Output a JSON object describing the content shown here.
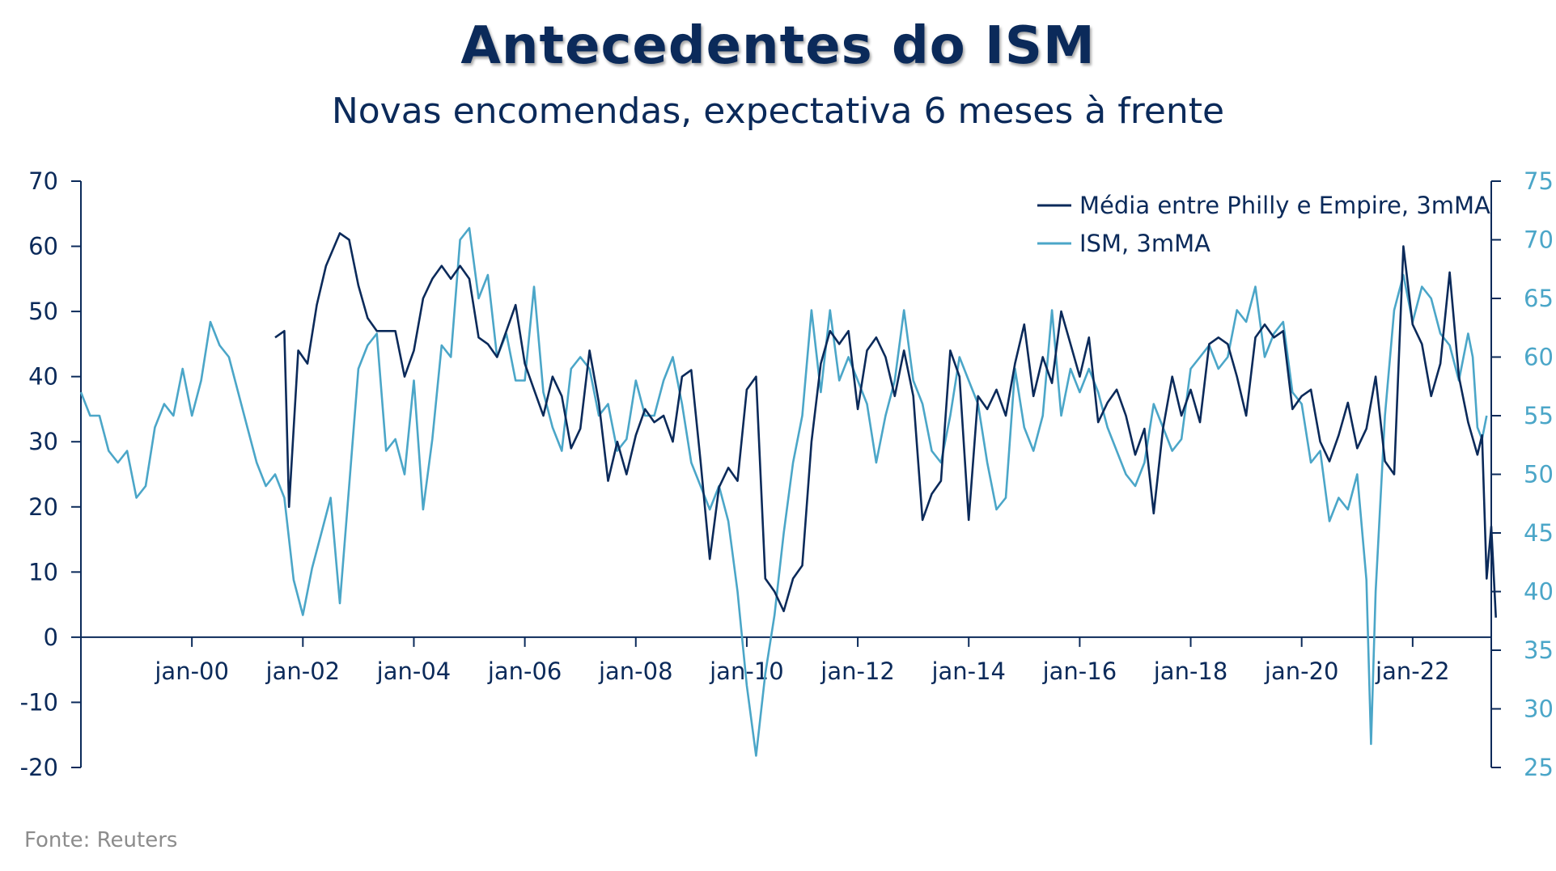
{
  "title": "Antecedentes do ISM",
  "subtitle": "Novas encomendas, expectativa 6 meses à frente",
  "source": "Fonte:  Reuters",
  "colors": {
    "series1": "#0b2a5a",
    "series2": "#4ba6c8",
    "text": "#0b2a5a"
  },
  "chart_data": {
    "type": "line",
    "legend_placement": "top-right",
    "grid": false,
    "x_range": [
      "1998-01",
      "2023-06"
    ],
    "x_tick_labels": [
      "jan-00",
      "jan-02",
      "jan-04",
      "jan-06",
      "jan-08",
      "jan-10",
      "jan-12",
      "jan-14",
      "jan-16",
      "jan-18",
      "jan-20",
      "jan-22"
    ],
    "x_tick_dates": [
      "2000-01",
      "2002-01",
      "2004-01",
      "2006-01",
      "2008-01",
      "2010-01",
      "2012-01",
      "2014-01",
      "2016-01",
      "2018-01",
      "2020-01",
      "2022-01"
    ],
    "y_left": {
      "ylim": [
        -20,
        70
      ],
      "ticks": [
        70,
        60,
        50,
        40,
        30,
        20,
        10,
        0,
        -10,
        -20
      ]
    },
    "y_right": {
      "ylim": [
        25,
        75
      ],
      "ticks": [
        75,
        70,
        65,
        60,
        55,
        50,
        45,
        40,
        35,
        30,
        25
      ]
    },
    "series": [
      {
        "name": "Média entre Philly e Empire, 3mMA",
        "axis": "left",
        "points": [
          [
            "2001-07",
            46
          ],
          [
            "2001-09",
            47
          ],
          [
            "2001-10",
            20
          ],
          [
            "2001-12",
            44
          ],
          [
            "2002-02",
            42
          ],
          [
            "2002-04",
            51
          ],
          [
            "2002-06",
            57
          ],
          [
            "2002-09",
            62
          ],
          [
            "2002-11",
            61
          ],
          [
            "2003-01",
            54
          ],
          [
            "2003-03",
            49
          ],
          [
            "2003-05",
            47
          ],
          [
            "2003-07",
            47
          ],
          [
            "2003-09",
            47
          ],
          [
            "2003-11",
            40
          ],
          [
            "2004-01",
            44
          ],
          [
            "2004-03",
            52
          ],
          [
            "2004-05",
            55
          ],
          [
            "2004-07",
            57
          ],
          [
            "2004-09",
            55
          ],
          [
            "2004-11",
            57
          ],
          [
            "2005-01",
            55
          ],
          [
            "2005-03",
            46
          ],
          [
            "2005-05",
            45
          ],
          [
            "2005-07",
            43
          ],
          [
            "2005-09",
            47
          ],
          [
            "2005-11",
            51
          ],
          [
            "2006-01",
            42
          ],
          [
            "2006-03",
            38
          ],
          [
            "2006-05",
            34
          ],
          [
            "2006-07",
            40
          ],
          [
            "2006-09",
            37
          ],
          [
            "2006-11",
            29
          ],
          [
            "2007-01",
            32
          ],
          [
            "2007-03",
            44
          ],
          [
            "2007-05",
            36
          ],
          [
            "2007-07",
            24
          ],
          [
            "2007-09",
            30
          ],
          [
            "2007-11",
            25
          ],
          [
            "2008-01",
            31
          ],
          [
            "2008-03",
            35
          ],
          [
            "2008-05",
            33
          ],
          [
            "2008-07",
            34
          ],
          [
            "2008-09",
            30
          ],
          [
            "2008-11",
            40
          ],
          [
            "2009-01",
            41
          ],
          [
            "2009-03",
            27
          ],
          [
            "2009-05",
            12
          ],
          [
            "2009-07",
            23
          ],
          [
            "2009-09",
            26
          ],
          [
            "2009-11",
            24
          ],
          [
            "2010-01",
            38
          ],
          [
            "2010-03",
            40
          ],
          [
            "2010-05",
            9
          ],
          [
            "2010-07",
            7
          ],
          [
            "2010-09",
            4
          ],
          [
            "2010-11",
            9
          ],
          [
            "2011-01",
            11
          ],
          [
            "2011-03",
            30
          ],
          [
            "2011-05",
            42
          ],
          [
            "2011-07",
            47
          ],
          [
            "2011-09",
            45
          ],
          [
            "2011-11",
            47
          ],
          [
            "2012-01",
            35
          ],
          [
            "2012-03",
            44
          ],
          [
            "2012-05",
            46
          ],
          [
            "2012-07",
            43
          ],
          [
            "2012-09",
            37
          ],
          [
            "2012-11",
            44
          ],
          [
            "2013-01",
            37
          ],
          [
            "2013-03",
            18
          ],
          [
            "2013-05",
            22
          ],
          [
            "2013-07",
            24
          ],
          [
            "2013-09",
            44
          ],
          [
            "2013-11",
            40
          ],
          [
            "2014-01",
            18
          ],
          [
            "2014-03",
            37
          ],
          [
            "2014-05",
            35
          ],
          [
            "2014-07",
            38
          ],
          [
            "2014-09",
            34
          ],
          [
            "2014-11",
            42
          ],
          [
            "2015-01",
            48
          ],
          [
            "2015-03",
            37
          ],
          [
            "2015-05",
            43
          ],
          [
            "2015-07",
            39
          ],
          [
            "2015-09",
            50
          ],
          [
            "2015-11",
            45
          ],
          [
            "2016-01",
            40
          ],
          [
            "2016-03",
            46
          ],
          [
            "2016-05",
            33
          ],
          [
            "2016-07",
            36
          ],
          [
            "2016-09",
            38
          ],
          [
            "2016-11",
            34
          ],
          [
            "2017-01",
            28
          ],
          [
            "2017-03",
            32
          ],
          [
            "2017-05",
            19
          ],
          [
            "2017-07",
            32
          ],
          [
            "2017-09",
            40
          ],
          [
            "2017-11",
            34
          ],
          [
            "2018-01",
            38
          ],
          [
            "2018-03",
            33
          ],
          [
            "2018-05",
            45
          ],
          [
            "2018-07",
            46
          ],
          [
            "2018-09",
            45
          ],
          [
            "2018-11",
            40
          ],
          [
            "2019-01",
            34
          ],
          [
            "2019-03",
            46
          ],
          [
            "2019-05",
            48
          ],
          [
            "2019-07",
            46
          ],
          [
            "2019-09",
            47
          ],
          [
            "2019-11",
            35
          ],
          [
            "2020-01",
            37
          ],
          [
            "2020-03",
            38
          ],
          [
            "2020-05",
            30
          ],
          [
            "2020-07",
            27
          ],
          [
            "2020-09",
            31
          ],
          [
            "2020-11",
            36
          ],
          [
            "2021-01",
            29
          ],
          [
            "2021-03",
            32
          ],
          [
            "2021-05",
            40
          ],
          [
            "2021-07",
            27
          ],
          [
            "2021-09",
            25
          ],
          [
            "2021-11",
            60
          ],
          [
            "2022-01",
            48
          ],
          [
            "2022-03",
            45
          ],
          [
            "2022-05",
            37
          ],
          [
            "2022-07",
            42
          ],
          [
            "2022-09",
            56
          ],
          [
            "2022-11",
            40
          ],
          [
            "2023-01",
            33
          ],
          [
            "2023-03",
            28
          ],
          [
            "2023-04",
            31
          ],
          [
            "2023-05",
            9
          ],
          [
            "2023-06",
            17
          ],
          [
            "2023-07",
            3
          ]
        ]
      },
      {
        "name": "ISM, 3mMA",
        "axis": "right",
        "points": [
          [
            "1998-01",
            57
          ],
          [
            "1998-03",
            55
          ],
          [
            "1998-05",
            55
          ],
          [
            "1998-07",
            52
          ],
          [
            "1998-09",
            51
          ],
          [
            "1998-11",
            52
          ],
          [
            "1999-01",
            48
          ],
          [
            "1999-03",
            49
          ],
          [
            "1999-05",
            54
          ],
          [
            "1999-07",
            56
          ],
          [
            "1999-09",
            55
          ],
          [
            "1999-11",
            59
          ],
          [
            "2000-01",
            55
          ],
          [
            "2000-03",
            58
          ],
          [
            "2000-05",
            63
          ],
          [
            "2000-07",
            61
          ],
          [
            "2000-09",
            60
          ],
          [
            "2000-11",
            57
          ],
          [
            "2001-01",
            54
          ],
          [
            "2001-03",
            51
          ],
          [
            "2001-05",
            49
          ],
          [
            "2001-07",
            50
          ],
          [
            "2001-09",
            48
          ],
          [
            "2001-11",
            41
          ],
          [
            "2002-01",
            38
          ],
          [
            "2002-03",
            42
          ],
          [
            "2002-05",
            45
          ],
          [
            "2002-07",
            48
          ],
          [
            "2002-09",
            39
          ],
          [
            "2002-11",
            49
          ],
          [
            "2003-01",
            59
          ],
          [
            "2003-03",
            61
          ],
          [
            "2003-05",
            62
          ],
          [
            "2003-07",
            52
          ],
          [
            "2003-09",
            53
          ],
          [
            "2003-11",
            50
          ],
          [
            "2004-01",
            58
          ],
          [
            "2004-03",
            47
          ],
          [
            "2004-05",
            53
          ],
          [
            "2004-07",
            61
          ],
          [
            "2004-09",
            60
          ],
          [
            "2004-11",
            70
          ],
          [
            "2005-01",
            71
          ],
          [
            "2005-03",
            65
          ],
          [
            "2005-05",
            67
          ],
          [
            "2005-07",
            60
          ],
          [
            "2005-09",
            62
          ],
          [
            "2005-11",
            58
          ],
          [
            "2006-01",
            58
          ],
          [
            "2006-03",
            66
          ],
          [
            "2006-05",
            57
          ],
          [
            "2006-07",
            54
          ],
          [
            "2006-09",
            52
          ],
          [
            "2006-11",
            59
          ],
          [
            "2007-01",
            60
          ],
          [
            "2007-03",
            59
          ],
          [
            "2007-05",
            55
          ],
          [
            "2007-07",
            56
          ],
          [
            "2007-09",
            52
          ],
          [
            "2007-11",
            53
          ],
          [
            "2008-01",
            58
          ],
          [
            "2008-03",
            55
          ],
          [
            "2008-05",
            55
          ],
          [
            "2008-07",
            58
          ],
          [
            "2008-09",
            60
          ],
          [
            "2008-11",
            56
          ],
          [
            "2009-01",
            51
          ],
          [
            "2009-03",
            49
          ],
          [
            "2009-05",
            47
          ],
          [
            "2009-07",
            49
          ],
          [
            "2009-09",
            46
          ],
          [
            "2009-11",
            40
          ],
          [
            "2010-01",
            32
          ],
          [
            "2010-03",
            26
          ],
          [
            "2010-05",
            33
          ],
          [
            "2010-07",
            38
          ],
          [
            "2010-09",
            45
          ],
          [
            "2010-11",
            51
          ],
          [
            "2011-01",
            55
          ],
          [
            "2011-03",
            64
          ],
          [
            "2011-05",
            57
          ],
          [
            "2011-07",
            64
          ],
          [
            "2011-09",
            58
          ],
          [
            "2011-11",
            60
          ],
          [
            "2012-01",
            58
          ],
          [
            "2012-03",
            56
          ],
          [
            "2012-05",
            51
          ],
          [
            "2012-07",
            55
          ],
          [
            "2012-09",
            58
          ],
          [
            "2012-11",
            64
          ],
          [
            "2013-01",
            58
          ],
          [
            "2013-03",
            56
          ],
          [
            "2013-05",
            52
          ],
          [
            "2013-07",
            51
          ],
          [
            "2013-09",
            55
          ],
          [
            "2013-11",
            60
          ],
          [
            "2014-01",
            58
          ],
          [
            "2014-03",
            56
          ],
          [
            "2014-05",
            51
          ],
          [
            "2014-07",
            47
          ],
          [
            "2014-09",
            48
          ],
          [
            "2014-11",
            59
          ],
          [
            "2015-01",
            54
          ],
          [
            "2015-03",
            52
          ],
          [
            "2015-05",
            55
          ],
          [
            "2015-07",
            64
          ],
          [
            "2015-09",
            55
          ],
          [
            "2015-11",
            59
          ],
          [
            "2016-01",
            57
          ],
          [
            "2016-03",
            59
          ],
          [
            "2016-05",
            57
          ],
          [
            "2016-07",
            54
          ],
          [
            "2016-09",
            52
          ],
          [
            "2016-11",
            50
          ],
          [
            "2017-01",
            49
          ],
          [
            "2017-03",
            51
          ],
          [
            "2017-05",
            56
          ],
          [
            "2017-07",
            54
          ],
          [
            "2017-09",
            52
          ],
          [
            "2017-11",
            53
          ],
          [
            "2018-01",
            59
          ],
          [
            "2018-03",
            60
          ],
          [
            "2018-05",
            61
          ],
          [
            "2018-07",
            59
          ],
          [
            "2018-09",
            60
          ],
          [
            "2018-11",
            64
          ],
          [
            "2019-01",
            63
          ],
          [
            "2019-03",
            66
          ],
          [
            "2019-05",
            60
          ],
          [
            "2019-07",
            62
          ],
          [
            "2019-09",
            63
          ],
          [
            "2019-11",
            57
          ],
          [
            "2020-01",
            56
          ],
          [
            "2020-03",
            51
          ],
          [
            "2020-05",
            52
          ],
          [
            "2020-07",
            46
          ],
          [
            "2020-09",
            48
          ],
          [
            "2020-11",
            47
          ],
          [
            "2021-01",
            50
          ],
          [
            "2021-03",
            41
          ],
          [
            "2021-04",
            27
          ],
          [
            "2021-05",
            40
          ],
          [
            "2021-07",
            55
          ],
          [
            "2021-09",
            64
          ],
          [
            "2021-11",
            67
          ],
          [
            "2022-01",
            63
          ],
          [
            "2022-03",
            66
          ],
          [
            "2022-05",
            65
          ],
          [
            "2022-07",
            62
          ],
          [
            "2022-09",
            61
          ],
          [
            "2022-11",
            58
          ],
          [
            "2023-01",
            62
          ],
          [
            "2023-02",
            60
          ],
          [
            "2023-03",
            54
          ],
          [
            "2023-04",
            53
          ],
          [
            "2023-05",
            55
          ]
        ]
      }
    ]
  }
}
